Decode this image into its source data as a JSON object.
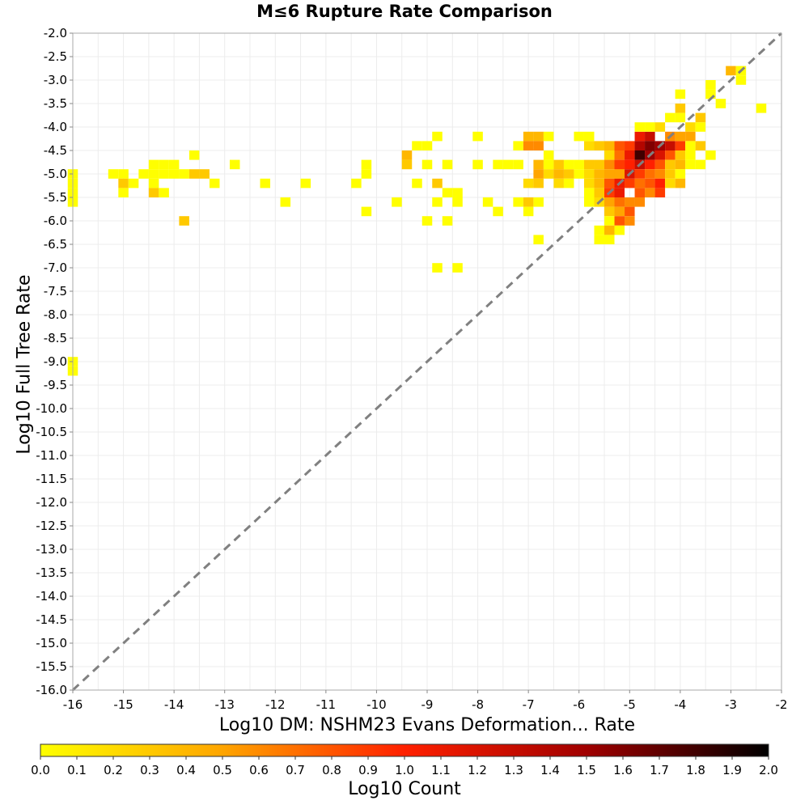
{
  "chart_data": {
    "type": "heatmap",
    "title": "M≤6 Rupture Rate Comparison",
    "xlabel": "Log10 DM: NSHM23 Evans Deformation... Rate",
    "ylabel": "Log10 Full Tree Rate",
    "xlim": [
      -16,
      -2
    ],
    "ylim": [
      -16,
      -2
    ],
    "x_ticks": [
      "-16",
      "-15",
      "-14",
      "-13",
      "-12",
      "-11",
      "-10",
      "-9",
      "-8",
      "-7",
      "-6",
      "-5",
      "-4",
      "-3",
      "-2"
    ],
    "y_ticks": [
      "-2.0",
      "-2.5",
      "-3.0",
      "-3.5",
      "-4.0",
      "-4.5",
      "-5.0",
      "-5.5",
      "-6.0",
      "-6.5",
      "-7.0",
      "-7.5",
      "-8.0",
      "-8.5",
      "-9.0",
      "-9.5",
      "-10.0",
      "-10.5",
      "-11.0",
      "-11.5",
      "-12.0",
      "-12.5",
      "-13.0",
      "-13.5",
      "-14.0",
      "-14.5",
      "-15.0",
      "-15.5",
      "-16.0"
    ],
    "bin_size": 0.2,
    "grid": true,
    "reference_line": {
      "style": "dashed",
      "from": [
        -16,
        -16
      ],
      "to": [
        -2,
        -2
      ],
      "color": "#808080"
    },
    "colorbar": {
      "label": "Log10 Count",
      "range": [
        0.0,
        2.0
      ],
      "ticks": [
        "0.0",
        "0.1",
        "0.2",
        "0.3",
        "0.4",
        "0.5",
        "0.6",
        "0.7",
        "0.8",
        "0.9",
        "1.0",
        "1.1",
        "1.2",
        "1.3",
        "1.4",
        "1.5",
        "1.6",
        "1.7",
        "1.8",
        "1.9",
        "2.0"
      ],
      "colors": [
        "#ffff00",
        "#ffa500",
        "#ff2000",
        "#a00000",
        "#000000"
      ]
    },
    "cells": [
      [
        -16.0,
        -5.0,
        0.0
      ],
      [
        -16.0,
        -5.2,
        0.0
      ],
      [
        -16.0,
        -5.4,
        0.0
      ],
      [
        -16.0,
        -5.6,
        0.0
      ],
      [
        -16.0,
        -9.0,
        0.0
      ],
      [
        -16.0,
        -9.2,
        0.0
      ],
      [
        -15.2,
        -5.0,
        0.0
      ],
      [
        -15.0,
        -5.0,
        0.0
      ],
      [
        -15.0,
        -5.2,
        0.3
      ],
      [
        -15.0,
        -5.4,
        0.0
      ],
      [
        -14.8,
        -5.2,
        0.0
      ],
      [
        -14.6,
        -5.0,
        0.0
      ],
      [
        -14.4,
        -5.0,
        0.0
      ],
      [
        -14.4,
        -4.8,
        0.0
      ],
      [
        -14.2,
        -4.8,
        0.0
      ],
      [
        -14.2,
        -5.0,
        0.0
      ],
      [
        -14.4,
        -5.2,
        0.0
      ],
      [
        -14.4,
        -5.4,
        0.3
      ],
      [
        -14.2,
        -5.4,
        0.0
      ],
      [
        -14.0,
        -4.8,
        0.0
      ],
      [
        -14.0,
        -5.0,
        0.0
      ],
      [
        -13.8,
        -5.0,
        0.0
      ],
      [
        -13.6,
        -5.0,
        0.3
      ],
      [
        -13.6,
        -4.6,
        0.0
      ],
      [
        -13.4,
        -5.0,
        0.3
      ],
      [
        -13.2,
        -5.2,
        0.0
      ],
      [
        -13.8,
        -6.0,
        0.3
      ],
      [
        -12.8,
        -4.8,
        0.0
      ],
      [
        -12.2,
        -5.2,
        0.0
      ],
      [
        -11.8,
        -5.6,
        0.0
      ],
      [
        -11.4,
        -5.2,
        0.0
      ],
      [
        -10.4,
        -5.2,
        0.0
      ],
      [
        -10.2,
        -5.0,
        0.0
      ],
      [
        -10.2,
        -4.8,
        0.0
      ],
      [
        -10.2,
        -5.8,
        0.0
      ],
      [
        -9.6,
        -5.6,
        0.0
      ],
      [
        -9.4,
        -4.6,
        0.4
      ],
      [
        -9.4,
        -4.8,
        0.3
      ],
      [
        -9.2,
        -4.4,
        0.0
      ],
      [
        -9.0,
        -4.4,
        0.0
      ],
      [
        -9.0,
        -4.8,
        0.0
      ],
      [
        -9.2,
        -5.2,
        0.0
      ],
      [
        -9.0,
        -6.0,
        0.0
      ],
      [
        -8.8,
        -4.2,
        0.0
      ],
      [
        -8.6,
        -4.8,
        0.0
      ],
      [
        -8.8,
        -5.2,
        0.3
      ],
      [
        -8.8,
        -5.6,
        0.0
      ],
      [
        -8.6,
        -5.4,
        0.0
      ],
      [
        -8.4,
        -5.4,
        0.0
      ],
      [
        -8.4,
        -5.6,
        0.0
      ],
      [
        -8.6,
        -6.0,
        0.0
      ],
      [
        -8.8,
        -7.0,
        0.0
      ],
      [
        -8.4,
        -7.0,
        0.0
      ],
      [
        -8.0,
        -4.2,
        0.0
      ],
      [
        -8.0,
        -4.8,
        0.0
      ],
      [
        -7.8,
        -5.6,
        0.0
      ],
      [
        -7.6,
        -4.8,
        0.0
      ],
      [
        -7.4,
        -4.8,
        0.0
      ],
      [
        -7.2,
        -4.8,
        0.0
      ],
      [
        -7.6,
        -5.8,
        0.0
      ],
      [
        -7.2,
        -5.6,
        0.0
      ],
      [
        -7.0,
        -5.6,
        0.3
      ],
      [
        -7.0,
        -5.8,
        0.0
      ],
      [
        -7.2,
        -4.4,
        0.0
      ],
      [
        -7.0,
        -4.2,
        0.4
      ],
      [
        -7.0,
        -4.4,
        0.6
      ],
      [
        -6.8,
        -4.2,
        0.4
      ],
      [
        -6.8,
        -4.4,
        0.6
      ],
      [
        -6.6,
        -4.2,
        0.0
      ],
      [
        -6.8,
        -4.8,
        0.4
      ],
      [
        -6.8,
        -5.0,
        0.5
      ],
      [
        -6.6,
        -4.6,
        0.0
      ],
      [
        -6.6,
        -4.8,
        0.0
      ],
      [
        -6.6,
        -5.0,
        0.2
      ],
      [
        -6.4,
        -4.8,
        0.3
      ],
      [
        -6.4,
        -5.0,
        0.4
      ],
      [
        -6.4,
        -5.2,
        0.2
      ],
      [
        -6.2,
        -5.0,
        0.3
      ],
      [
        -6.2,
        -4.8,
        0.0
      ],
      [
        -6.2,
        -5.2,
        0.0
      ],
      [
        -7.0,
        -5.2,
        0.2
      ],
      [
        -6.8,
        -5.2,
        0.3
      ],
      [
        -6.8,
        -5.6,
        0.0
      ],
      [
        -6.8,
        -6.4,
        0.0
      ],
      [
        -6.0,
        -4.2,
        0.0
      ],
      [
        -5.8,
        -4.4,
        0.2
      ],
      [
        -5.8,
        -4.2,
        0.0
      ],
      [
        -5.6,
        -4.4,
        0.3
      ],
      [
        -5.4,
        -4.4,
        0.4
      ],
      [
        -6.0,
        -4.8,
        0.0
      ],
      [
        -5.8,
        -4.8,
        0.3
      ],
      [
        -5.8,
        -5.0,
        0.2
      ],
      [
        -6.0,
        -5.0,
        0.0
      ],
      [
        -5.6,
        -5.0,
        0.4
      ],
      [
        -5.6,
        -4.8,
        0.3
      ],
      [
        -5.4,
        -4.6,
        0.2
      ],
      [
        -5.4,
        -4.8,
        0.6
      ],
      [
        -5.2,
        -4.6,
        0.7
      ],
      [
        -5.2,
        -4.4,
        0.8
      ],
      [
        -5.0,
        -4.4,
        0.9
      ],
      [
        -4.8,
        -4.2,
        1.1
      ],
      [
        -4.6,
        -4.2,
        1.3
      ],
      [
        -4.4,
        -4.4,
        1.5
      ],
      [
        -4.2,
        -4.4,
        1.3
      ],
      [
        -4.0,
        -4.4,
        0.9
      ],
      [
        -4.8,
        -4.4,
        1.4
      ],
      [
        -4.6,
        -4.4,
        1.6
      ],
      [
        -4.8,
        -4.6,
        1.8
      ],
      [
        -4.6,
        -4.6,
        1.5
      ],
      [
        -4.4,
        -4.6,
        1.2
      ],
      [
        -4.2,
        -4.6,
        0.8
      ],
      [
        -5.0,
        -4.6,
        1.1
      ],
      [
        -5.0,
        -4.8,
        1.0
      ],
      [
        -4.8,
        -4.8,
        1.3
      ],
      [
        -4.6,
        -4.8,
        1.0
      ],
      [
        -4.4,
        -4.8,
        0.8
      ],
      [
        -5.2,
        -4.8,
        0.9
      ],
      [
        -5.2,
        -5.0,
        1.0
      ],
      [
        -5.0,
        -5.0,
        1.2
      ],
      [
        -4.8,
        -5.0,
        0.9
      ],
      [
        -4.6,
        -5.0,
        0.7
      ],
      [
        -4.4,
        -5.0,
        0.6
      ],
      [
        -5.4,
        -5.0,
        0.5
      ],
      [
        -5.6,
        -5.2,
        0.4
      ],
      [
        -5.4,
        -5.2,
        0.8
      ],
      [
        -5.2,
        -5.2,
        1.1
      ],
      [
        -5.0,
        -5.2,
        0.9
      ],
      [
        -4.8,
        -5.2,
        0.7
      ],
      [
        -4.6,
        -5.2,
        0.8
      ],
      [
        -4.4,
        -5.2,
        1.0
      ],
      [
        -5.6,
        -5.4,
        0.3
      ],
      [
        -5.4,
        -5.4,
        0.9
      ],
      [
        -5.2,
        -5.4,
        1.1
      ],
      [
        -4.8,
        -5.4,
        0.8
      ],
      [
        -4.6,
        -5.4,
        0.6
      ],
      [
        -4.4,
        -5.4,
        0.9
      ],
      [
        -5.8,
        -5.2,
        0.2
      ],
      [
        -5.8,
        -5.4,
        0.0
      ],
      [
        -5.8,
        -5.6,
        0.0
      ],
      [
        -5.6,
        -5.6,
        0.2
      ],
      [
        -5.4,
        -5.6,
        0.5
      ],
      [
        -5.2,
        -5.6,
        0.7
      ],
      [
        -5.0,
        -5.6,
        0.6
      ],
      [
        -5.0,
        -5.8,
        0.8
      ],
      [
        -4.8,
        -5.6,
        0.6
      ],
      [
        -5.4,
        -5.8,
        0.3
      ],
      [
        -5.2,
        -5.8,
        0.5
      ],
      [
        -5.2,
        -6.0,
        0.8
      ],
      [
        -5.0,
        -6.0,
        0.6
      ],
      [
        -5.4,
        -6.0,
        0.0
      ],
      [
        -5.6,
        -6.2,
        0.0
      ],
      [
        -5.4,
        -6.2,
        0.4
      ],
      [
        -5.2,
        -6.2,
        0.0
      ],
      [
        -5.6,
        -6.4,
        0.0
      ],
      [
        -5.4,
        -6.4,
        0.0
      ],
      [
        -5.2,
        -5.0,
        0.5
      ],
      [
        -4.2,
        -4.2,
        0.6
      ],
      [
        -4.0,
        -4.2,
        0.5
      ],
      [
        -4.0,
        -4.6,
        0.3
      ],
      [
        -4.0,
        -4.8,
        0.4
      ],
      [
        -4.2,
        -4.8,
        0.3
      ],
      [
        -4.2,
        -5.0,
        0.3
      ],
      [
        -4.0,
        -5.0,
        0.0
      ],
      [
        -4.0,
        -5.2,
        0.4
      ],
      [
        -4.2,
        -5.2,
        0.2
      ],
      [
        -4.4,
        -4.0,
        0.2
      ],
      [
        -4.6,
        -4.0,
        0.0
      ],
      [
        -4.8,
        -4.0,
        0.0
      ],
      [
        -4.2,
        -3.8,
        0.0
      ],
      [
        -4.0,
        -3.6,
        0.3
      ],
      [
        -4.0,
        -3.8,
        0.0
      ],
      [
        -3.8,
        -4.0,
        0.2
      ],
      [
        -3.8,
        -4.2,
        0.5
      ],
      [
        -3.8,
        -4.4,
        0.0
      ],
      [
        -3.6,
        -3.8,
        0.3
      ],
      [
        -3.6,
        -4.0,
        0.0
      ],
      [
        -3.6,
        -4.4,
        0.3
      ],
      [
        -3.8,
        -4.6,
        0.0
      ],
      [
        -3.4,
        -4.6,
        0.0
      ],
      [
        -3.8,
        -4.8,
        0.0
      ],
      [
        -4.0,
        -3.3,
        0.0
      ],
      [
        -3.4,
        -3.3,
        0.0
      ],
      [
        -3.2,
        -3.5,
        0.0
      ],
      [
        -3.4,
        -3.1,
        0.0
      ],
      [
        -2.8,
        -3.0,
        0.0
      ],
      [
        -3.0,
        -2.8,
        0.4
      ],
      [
        -2.8,
        -2.8,
        0.0
      ],
      [
        -2.4,
        -3.6,
        0.0
      ],
      [
        -3.6,
        -4.8,
        0.0
      ]
    ]
  }
}
